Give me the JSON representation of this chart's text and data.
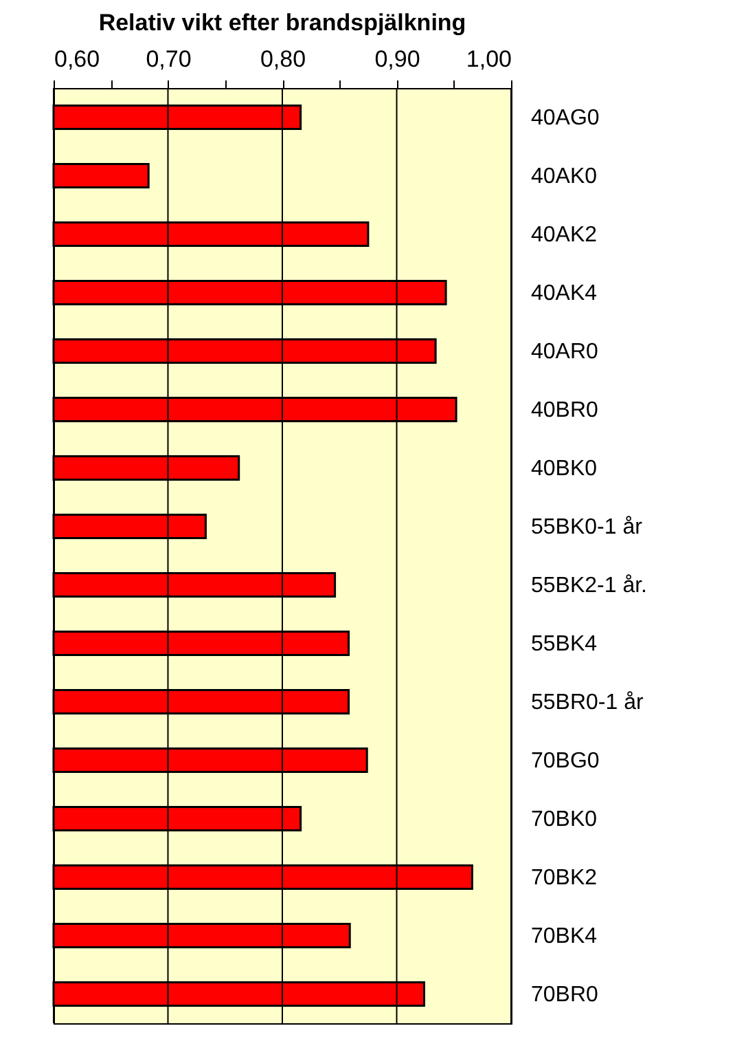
{
  "chart_data": {
    "type": "bar",
    "orientation": "horizontal",
    "title": "Relativ vikt efter brandspjälkning",
    "categories": [
      "40AG0",
      "40AK0",
      "40AK2",
      "40AK4",
      "40AR0",
      "40BR0",
      "40BK0",
      "55BK0-1 år",
      "55BK2-1 år.",
      "55BK4",
      "55BR0-1 år",
      "70BG0",
      "70BK0",
      "70BK2",
      "70BK4",
      "70BR0"
    ],
    "values": [
      0.816,
      0.683,
      0.875,
      0.943,
      0.934,
      0.952,
      0.762,
      0.733,
      0.846,
      0.858,
      0.858,
      0.874,
      0.816,
      0.966,
      0.859,
      0.924
    ],
    "color": "#ff0000",
    "xlim": [
      0.6,
      1.0
    ],
    "xticks": [
      {
        "value": 0.6,
        "label": "0,60"
      },
      {
        "value": 0.65,
        "label": null
      },
      {
        "value": 0.7,
        "label": "0,70"
      },
      {
        "value": 0.75,
        "label": null
      },
      {
        "value": 0.8,
        "label": "0,80"
      },
      {
        "value": 0.85,
        "label": null
      },
      {
        "value": 0.9,
        "label": "0,90"
      },
      {
        "value": 0.95,
        "label": null
      },
      {
        "value": 1.0,
        "label": "1,00"
      }
    ],
    "grid": "x"
  }
}
